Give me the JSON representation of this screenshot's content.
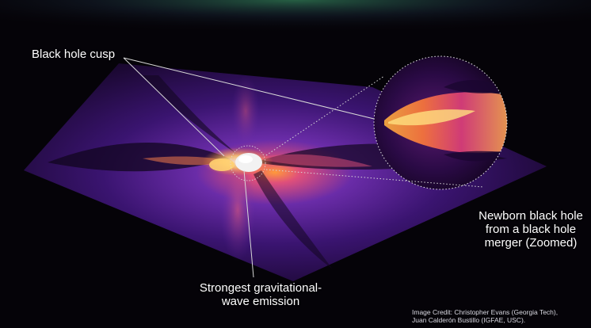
{
  "labels": {
    "cusp": "Black hole cusp",
    "newborn": [
      "Newborn black hole",
      "from a black hole",
      "merger (Zoomed)"
    ],
    "strongest": [
      "Strongest gravitational-",
      "wave emission"
    ]
  },
  "credit": [
    "Image Credit: Christopher Evans (Georgia Tech),",
    "Juan Calderón Bustillo (IGFAE, USC)."
  ],
  "colors": {
    "background": "#050308",
    "plane_dark": "#1a0a35",
    "plane_purple": "#5a2a9a",
    "glow_magenta": "#b23a8a",
    "glow_orange": "#f08a3a",
    "glow_yellow": "#ffd070",
    "text": "#ffffff"
  }
}
